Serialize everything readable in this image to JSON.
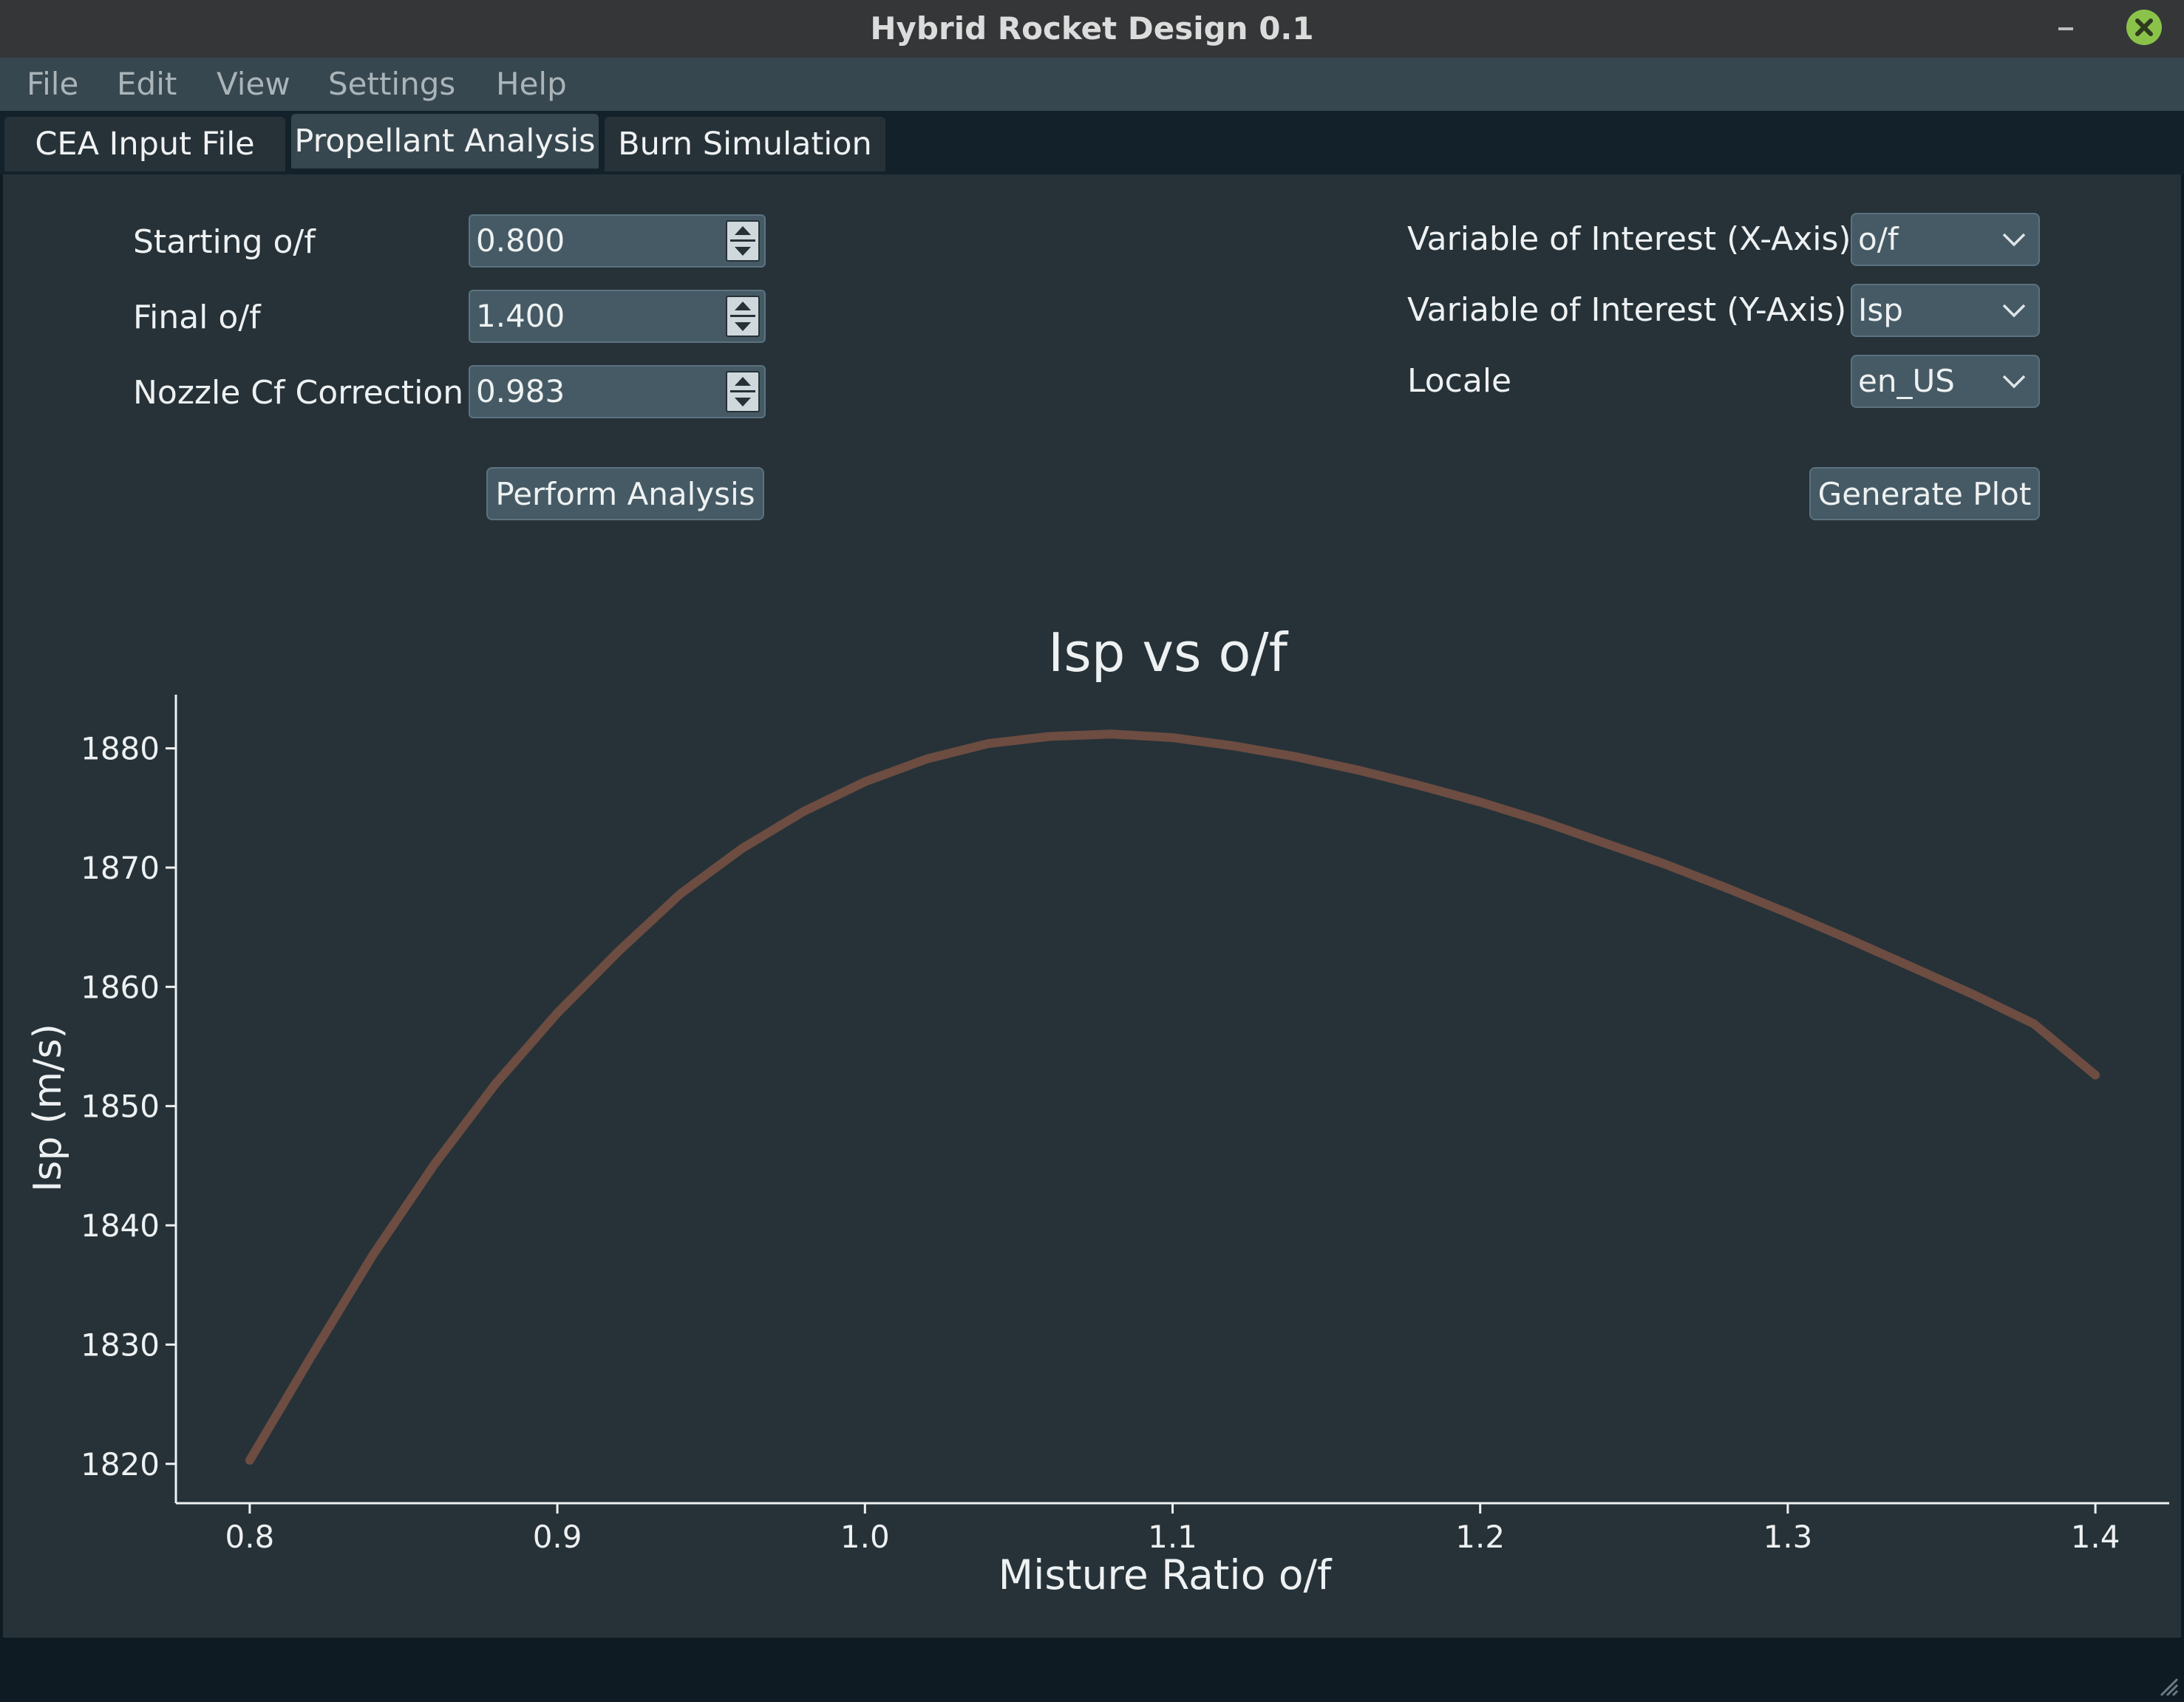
{
  "window": {
    "title": "Hybrid Rocket Design 0.1"
  },
  "menu": {
    "items": [
      "File",
      "Edit",
      "View",
      "Settings",
      "Help"
    ]
  },
  "tabs": [
    {
      "label": "CEA Input File"
    },
    {
      "label": "Propellant Analysis",
      "active": true
    },
    {
      "label": "Burn Simulation"
    }
  ],
  "form": {
    "starting_of": {
      "label": "Starting o/f",
      "value": "0.800"
    },
    "final_of": {
      "label": "Final o/f",
      "value": "1.400"
    },
    "nozzle_cf": {
      "label": "Nozzle Cf Correction",
      "value": "0.983"
    },
    "perform_button": "Perform Analysis"
  },
  "plot_controls": {
    "x_axis": {
      "label": "Variable of Interest (X-Axis)",
      "value": "o/f"
    },
    "y_axis": {
      "label": "Variable of Interest (Y-Axis)",
      "value": "Isp"
    },
    "locale": {
      "label": "Locale",
      "value": "en_US"
    },
    "generate_button": "Generate Plot"
  },
  "colors": {
    "background": "#263238",
    "curve": "#6d4c41",
    "axis": "#eef1f2"
  },
  "icons": {
    "minimize": "minimize-icon",
    "close": "close-icon",
    "dropdown": "chevron-down-icon",
    "spin": "spin-arrows-icon"
  },
  "chart_data": {
    "type": "line",
    "title": "Isp vs o/f",
    "xlabel": "Misture Ratio o/f",
    "ylabel": "Isp (m/s)",
    "xlim": [
      0.776,
      1.424
    ],
    "ylim": [
      1816.7,
      1884.5
    ],
    "xticks": [
      0.8,
      0.9,
      1.0,
      1.1,
      1.2,
      1.3,
      1.4
    ],
    "xtick_labels": [
      "0.8",
      "0.9",
      "1.0",
      "1.1",
      "1.2",
      "1.3",
      "1.4"
    ],
    "yticks": [
      1820,
      1830,
      1840,
      1850,
      1860,
      1870,
      1880
    ],
    "ytick_labels": [
      "1820",
      "1830",
      "1840",
      "1850",
      "1860",
      "1870",
      "1880"
    ],
    "grid": false,
    "series": [
      {
        "x": [
          0.8,
          0.82,
          0.84,
          0.86,
          0.88,
          0.9,
          0.92,
          0.94,
          0.96,
          0.98,
          1.0,
          1.02,
          1.04,
          1.06,
          1.08,
          1.1,
          1.12,
          1.14,
          1.16,
          1.18,
          1.2,
          1.22,
          1.24,
          1.26,
          1.28,
          1.3,
          1.32,
          1.34,
          1.36,
          1.38,
          1.4
        ],
        "y": [
          1820.3,
          1829.0,
          1837.5,
          1845.1,
          1851.9,
          1857.8,
          1863.0,
          1867.8,
          1871.6,
          1874.7,
          1877.2,
          1879.1,
          1880.4,
          1881.0,
          1881.2,
          1880.9,
          1880.2,
          1879.3,
          1878.2,
          1876.9,
          1875.5,
          1873.9,
          1872.1,
          1870.3,
          1868.3,
          1866.2,
          1864.0,
          1861.7,
          1859.4,
          1856.9,
          1852.6
        ]
      }
    ]
  }
}
